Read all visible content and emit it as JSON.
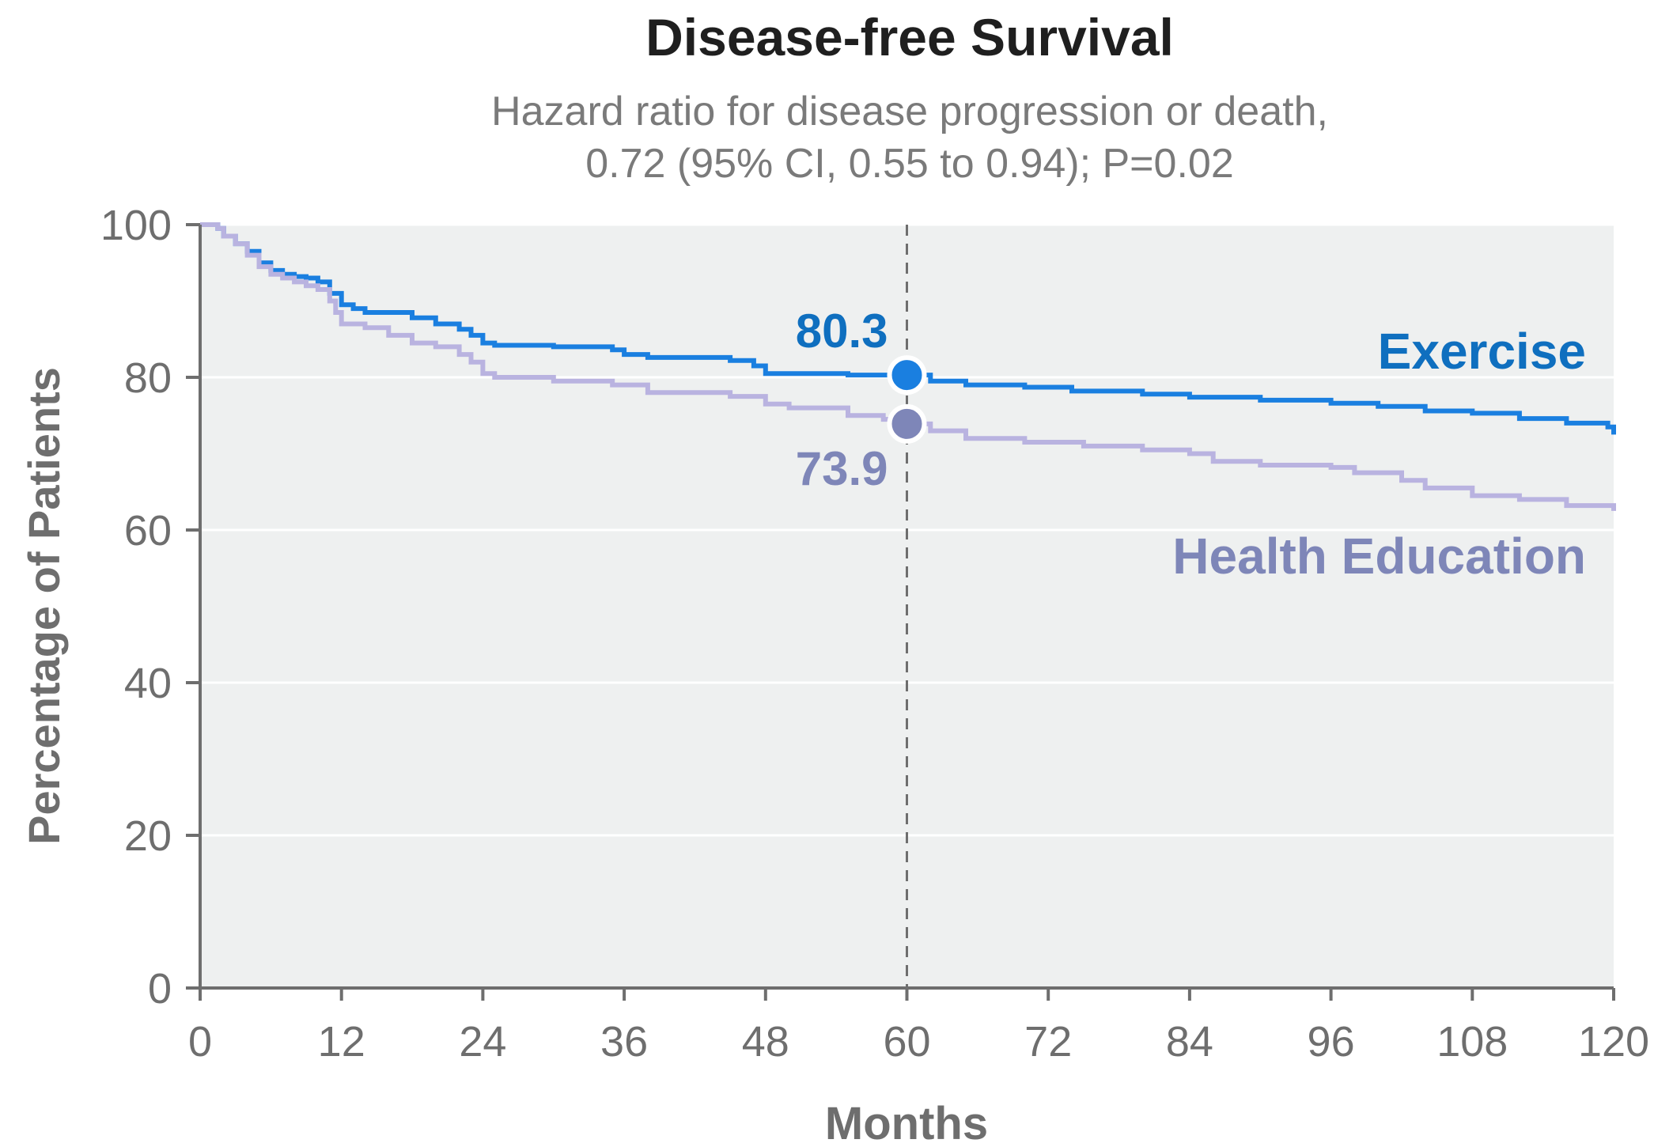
{
  "chart_data": {
    "type": "line",
    "step": true,
    "title": "Disease-free Survival",
    "subtitle_lines": [
      "Hazard ratio for disease progression or death,",
      "0.72 (95% CI, 0.55 to 0.94); P=0.02"
    ],
    "xlabel": "Months",
    "ylabel": "Percentage of Patients",
    "xlim": [
      0,
      120
    ],
    "ylim": [
      0,
      100
    ],
    "x_ticks": [
      0,
      12,
      24,
      36,
      48,
      60,
      72,
      84,
      96,
      108,
      120
    ],
    "y_ticks": [
      0,
      20,
      40,
      60,
      80,
      100
    ],
    "grid": "horizontal",
    "reference_line_x": 60,
    "series": [
      {
        "name": "Exercise",
        "color": "#1a7fe0",
        "label_color": "#0f6fbf",
        "marker_color": "#1a7fe0",
        "highlight": {
          "x": 60,
          "y": 80.3,
          "label": "80.3"
        },
        "x": [
          0,
          1.5,
          2,
          3,
          4,
          5,
          6,
          7,
          8,
          9,
          10,
          11,
          12,
          13,
          14,
          16,
          18,
          20,
          22,
          23,
          24,
          25,
          30,
          35,
          36,
          38,
          45,
          47,
          48,
          55,
          60,
          62,
          65,
          70,
          74,
          80,
          84,
          90,
          96,
          100,
          104,
          108,
          112,
          116,
          119.5,
          120
        ],
        "y": [
          100,
          99.5,
          98.5,
          97.5,
          96.5,
          95,
          94,
          93.5,
          93.2,
          93,
          92.5,
          91,
          89.5,
          89,
          88.5,
          88.5,
          87.8,
          87,
          86.3,
          85.5,
          84.5,
          84.2,
          84,
          83.6,
          83,
          82.6,
          82.2,
          81.5,
          80.5,
          80.3,
          80.3,
          79.5,
          79,
          78.7,
          78.2,
          77.8,
          77.4,
          77,
          76.6,
          76.2,
          75.6,
          75.3,
          74.6,
          74,
          73.5,
          72.5
        ]
      },
      {
        "name": "Health Education",
        "color": "#b9b3e0",
        "label_color": "#7e86b8",
        "marker_color": "#7e86b8",
        "highlight": {
          "x": 60,
          "y": 73.9,
          "label": "73.9"
        },
        "x": [
          0,
          1.5,
          2,
          3,
          4,
          5,
          6,
          7,
          8,
          9,
          10,
          11,
          11.5,
          12,
          14,
          16,
          18,
          20,
          22,
          23,
          24,
          25,
          30,
          35,
          38,
          45,
          48,
          50,
          55,
          58,
          60,
          62,
          65,
          70,
          75,
          80,
          84,
          86,
          90,
          96,
          98,
          102,
          104,
          108,
          112,
          116,
          120
        ],
        "y": [
          100,
          99.5,
          98.5,
          97.5,
          96,
          94.5,
          93.5,
          93,
          92.5,
          92,
          91.5,
          90,
          88.5,
          87,
          86.5,
          85.5,
          84.5,
          84,
          83,
          82,
          80.5,
          80,
          79.5,
          79,
          78,
          77.5,
          76.5,
          76,
          75,
          74.5,
          73.9,
          73,
          72,
          71.5,
          71,
          70.5,
          70,
          69,
          68.5,
          68.2,
          67.5,
          66.5,
          65.5,
          64.5,
          64,
          63.2,
          62.5
        ]
      }
    ]
  },
  "colors": {
    "plot_background": "#eef0f0",
    "grid": "#ffffff",
    "axis": "#6e6e6e",
    "reference_line": "#6e6e6e"
  }
}
